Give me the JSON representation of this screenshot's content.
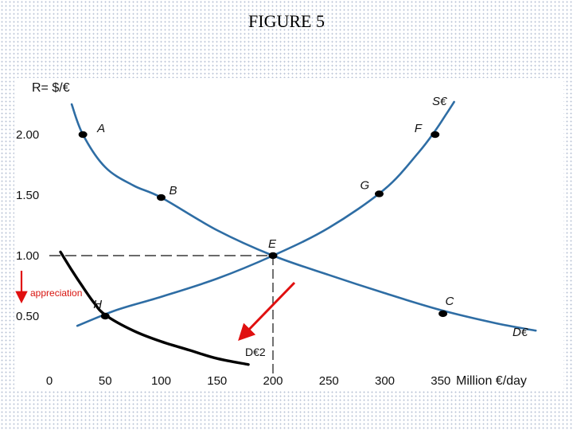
{
  "title": "FIGURE 5",
  "chart_data": {
    "type": "line",
    "title": "",
    "ylabel": "R= $/€",
    "xlabel": "Million €/day",
    "xlim": [
      0,
      400
    ],
    "ylim": [
      0,
      2.2
    ],
    "x_ticks": [
      0,
      50,
      100,
      150,
      200,
      250,
      300,
      350
    ],
    "x_tick_labels": [
      "0",
      "50",
      "100",
      "150",
      "200",
      "250",
      "300",
      "350"
    ],
    "y_ticks": [
      0.5,
      1.0,
      1.5,
      2.0
    ],
    "y_tick_labels": [
      "0.50",
      "1.00",
      "1.50",
      "2.00"
    ],
    "grid": false,
    "colors": {
      "curves": "#2e6da4",
      "shift_curve": "#000000",
      "arrows": "#e01010",
      "points": "#000000"
    },
    "series": [
      {
        "name": "S€",
        "x": [
          25,
          60,
          100,
          150,
          200,
          250,
          300,
          330,
          345,
          355,
          362
        ],
        "y": [
          0.42,
          0.55,
          0.66,
          0.81,
          1.0,
          1.23,
          1.55,
          1.85,
          2.03,
          2.17,
          2.27
        ]
      },
      {
        "name": "D€",
        "x": [
          20,
          30,
          50,
          75,
          100,
          150,
          200,
          250,
          300,
          350,
          400,
          435
        ],
        "y": [
          2.25,
          2.0,
          1.73,
          1.58,
          1.48,
          1.21,
          1.0,
          0.84,
          0.69,
          0.55,
          0.44,
          0.38
        ]
      },
      {
        "name": "D€2",
        "x": [
          10,
          20,
          30,
          40,
          50,
          75,
          100,
          125,
          150,
          178
        ],
        "y": [
          1.03,
          0.88,
          0.74,
          0.61,
          0.51,
          0.38,
          0.29,
          0.22,
          0.15,
          0.1
        ]
      }
    ],
    "points": [
      {
        "label": "A",
        "x": 30,
        "y": 2.0
      },
      {
        "label": "B",
        "x": 100,
        "y": 1.48
      },
      {
        "label": "E",
        "x": 200,
        "y": 1.0
      },
      {
        "label": "G",
        "x": 295,
        "y": 1.51
      },
      {
        "label": "F",
        "x": 345,
        "y": 2.0
      },
      {
        "label": "C",
        "x": 352,
        "y": 0.52
      },
      {
        "label": "H",
        "x": 50,
        "y": 0.5
      }
    ],
    "curve_labels": {
      "supply": "S€",
      "demand": "D€",
      "shifted_demand": "D€2"
    },
    "annotations": {
      "appreciation": "appreciation"
    }
  }
}
